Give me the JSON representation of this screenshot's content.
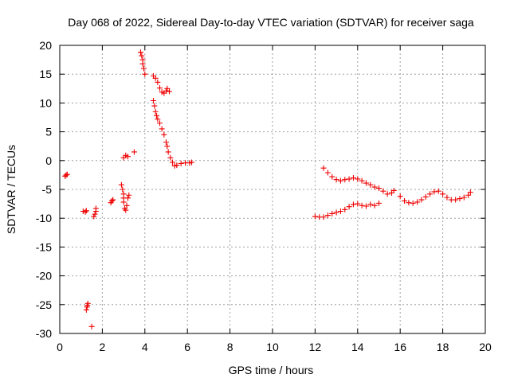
{
  "chart_data": {
    "type": "scatter",
    "title": "Day 068 of 2022, Sidereal Day-to-day VTEC variation (SDTVAR) for receiver saga",
    "xlabel": "GPS time / hours",
    "ylabel": "SDTVAR / TECUs",
    "xlim": [
      0,
      20
    ],
    "ylim": [
      -30,
      20
    ],
    "xticks": [
      0,
      2,
      4,
      6,
      8,
      10,
      12,
      14,
      16,
      18,
      20
    ],
    "yticks": [
      -30,
      -25,
      -20,
      -15,
      -10,
      -5,
      0,
      5,
      10,
      15,
      20
    ],
    "grid": true,
    "marker": "+",
    "color": "#ff0000",
    "series": [
      {
        "name": "SDTVAR",
        "points": [
          [
            0.25,
            -2.7
          ],
          [
            0.3,
            -2.5
          ],
          [
            0.35,
            -2.4
          ],
          [
            1.1,
            -8.8
          ],
          [
            1.2,
            -8.9
          ],
          [
            1.25,
            -8.7
          ],
          [
            1.25,
            -25.9
          ],
          [
            1.28,
            -25.4
          ],
          [
            1.3,
            -25.1
          ],
          [
            1.32,
            -24.8
          ],
          [
            1.5,
            -28.8
          ],
          [
            1.6,
            -9.7
          ],
          [
            1.65,
            -9.3
          ],
          [
            1.7,
            -8.8
          ],
          [
            1.7,
            -8.3
          ],
          [
            2.4,
            -7.3
          ],
          [
            2.45,
            -7.0
          ],
          [
            2.5,
            -6.8
          ],
          [
            2.9,
            -4.2
          ],
          [
            2.95,
            -5.0
          ],
          [
            3.0,
            -5.8
          ],
          [
            3.0,
            -6.5
          ],
          [
            3.0,
            -7.2
          ],
          [
            3.05,
            -8.3
          ],
          [
            3.1,
            -8.6
          ],
          [
            3.15,
            -7.8
          ],
          [
            3.2,
            -6.5
          ],
          [
            3.25,
            -6.0
          ],
          [
            3.0,
            0.5
          ],
          [
            3.1,
            0.9
          ],
          [
            3.2,
            0.7
          ],
          [
            3.5,
            1.5
          ],
          [
            3.8,
            18.8
          ],
          [
            3.85,
            18.2
          ],
          [
            3.9,
            17.5
          ],
          [
            3.9,
            16.8
          ],
          [
            3.95,
            16.0
          ],
          [
            4.0,
            15.0
          ],
          [
            4.4,
            14.7
          ],
          [
            4.5,
            14.3
          ],
          [
            4.6,
            13.6
          ],
          [
            4.7,
            12.6
          ],
          [
            4.8,
            11.9
          ],
          [
            4.9,
            11.7
          ],
          [
            5.0,
            12.1
          ],
          [
            5.05,
            12.5
          ],
          [
            5.15,
            12.0
          ],
          [
            4.4,
            10.4
          ],
          [
            4.45,
            9.5
          ],
          [
            4.5,
            8.5
          ],
          [
            4.55,
            7.8
          ],
          [
            4.6,
            7.2
          ],
          [
            4.7,
            6.5
          ],
          [
            4.8,
            5.5
          ],
          [
            4.9,
            4.5
          ],
          [
            5.0,
            3.2
          ],
          [
            5.05,
            2.5
          ],
          [
            5.1,
            1.5
          ],
          [
            5.2,
            0.5
          ],
          [
            5.3,
            -0.3
          ],
          [
            5.4,
            -0.9
          ],
          [
            5.5,
            -0.8
          ],
          [
            5.7,
            -0.5
          ],
          [
            5.9,
            -0.4
          ],
          [
            6.1,
            -0.4
          ],
          [
            6.2,
            -0.3
          ],
          [
            12.0,
            -9.7
          ],
          [
            12.2,
            -9.8
          ],
          [
            12.4,
            -9.8
          ],
          [
            12.6,
            -9.5
          ],
          [
            12.8,
            -9.2
          ],
          [
            13.0,
            -9.0
          ],
          [
            13.2,
            -8.8
          ],
          [
            13.4,
            -8.5
          ],
          [
            13.6,
            -8.0
          ],
          [
            13.8,
            -7.6
          ],
          [
            14.0,
            -7.5
          ],
          [
            14.2,
            -7.8
          ],
          [
            14.4,
            -7.9
          ],
          [
            14.6,
            -7.6
          ],
          [
            14.8,
            -7.8
          ],
          [
            15.0,
            -7.4
          ],
          [
            12.4,
            -1.3
          ],
          [
            12.6,
            -2.1
          ],
          [
            12.8,
            -2.8
          ],
          [
            13.0,
            -3.3
          ],
          [
            13.2,
            -3.5
          ],
          [
            13.4,
            -3.3
          ],
          [
            13.6,
            -3.2
          ],
          [
            13.8,
            -3.0
          ],
          [
            14.0,
            -3.2
          ],
          [
            14.2,
            -3.5
          ],
          [
            14.4,
            -3.9
          ],
          [
            14.6,
            -4.2
          ],
          [
            14.8,
            -4.6
          ],
          [
            15.0,
            -4.8
          ],
          [
            15.2,
            -5.3
          ],
          [
            15.4,
            -5.8
          ],
          [
            15.6,
            -5.6
          ],
          [
            15.7,
            -5.2
          ],
          [
            16.0,
            -6.2
          ],
          [
            16.2,
            -7.0
          ],
          [
            16.4,
            -7.3
          ],
          [
            16.6,
            -7.4
          ],
          [
            16.8,
            -7.2
          ],
          [
            17.0,
            -6.8
          ],
          [
            17.2,
            -6.3
          ],
          [
            17.4,
            -5.8
          ],
          [
            17.6,
            -5.4
          ],
          [
            17.8,
            -5.3
          ],
          [
            18.0,
            -5.8
          ],
          [
            18.2,
            -6.4
          ],
          [
            18.4,
            -6.8
          ],
          [
            18.6,
            -6.8
          ],
          [
            18.8,
            -6.6
          ],
          [
            19.0,
            -6.4
          ],
          [
            19.2,
            -6.0
          ],
          [
            19.3,
            -5.5
          ]
        ]
      }
    ]
  }
}
